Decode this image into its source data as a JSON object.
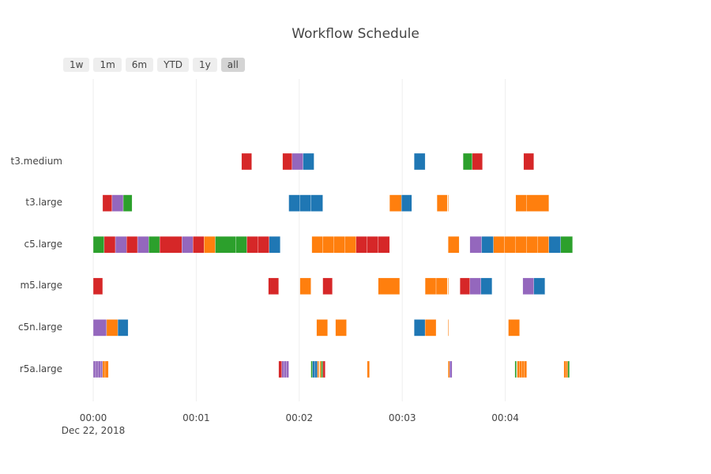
{
  "title": "Workflow Schedule",
  "range_selector": {
    "buttons": [
      "1w",
      "1m",
      "6m",
      "YTD",
      "1y",
      "all"
    ],
    "active": "all"
  },
  "colors": {
    "red": "#d62728",
    "purple": "#9467bd",
    "green": "#2ca02c",
    "blue": "#1f77b4",
    "orange": "#ff7f0e",
    "grid": "#eeeeee"
  },
  "chart_data": {
    "type": "gantt",
    "title": "Workflow Schedule",
    "x_unit": "seconds from 2018-12-22 00:00:00",
    "xlim": [
      0,
      280
    ],
    "x_ticks": [
      {
        "value": 0,
        "label": "00:00"
      },
      {
        "value": 60,
        "label": "00:01"
      },
      {
        "value": 120,
        "label": "00:02"
      },
      {
        "value": 180,
        "label": "00:03"
      },
      {
        "value": 240,
        "label": "00:04"
      }
    ],
    "x_date_label": "Dec 22, 2018",
    "categories": [
      "t3.medium",
      "t3.large",
      "c5.large",
      "m5.large",
      "c5n.large",
      "r5a.large"
    ],
    "grid": true,
    "tasks": [
      {
        "row": "t3.medium",
        "start": 86.4,
        "end": 92.3,
        "color": "red"
      },
      {
        "row": "t3.medium",
        "start": 110.3,
        "end": 115.8,
        "color": "red"
      },
      {
        "row": "t3.medium",
        "start": 115.8,
        "end": 122.2,
        "color": "purple"
      },
      {
        "row": "t3.medium",
        "start": 122.2,
        "end": 128.6,
        "color": "blue"
      },
      {
        "row": "t3.medium",
        "start": 186.9,
        "end": 193.3,
        "color": "blue"
      },
      {
        "row": "t3.medium",
        "start": 215.4,
        "end": 220.8,
        "color": "green"
      },
      {
        "row": "t3.medium",
        "start": 220.8,
        "end": 226.7,
        "color": "red"
      },
      {
        "row": "t3.medium",
        "start": 250.7,
        "end": 256.6,
        "color": "red"
      },
      {
        "row": "t3.large",
        "start": 5.5,
        "end": 11.0,
        "color": "red"
      },
      {
        "row": "t3.large",
        "start": 11.0,
        "end": 17.5,
        "color": "purple"
      },
      {
        "row": "t3.large",
        "start": 17.5,
        "end": 22.6,
        "color": "green"
      },
      {
        "row": "t3.large",
        "start": 113.9,
        "end": 120.4,
        "color": "blue"
      },
      {
        "row": "t3.large",
        "start": 120.4,
        "end": 126.8,
        "color": "blue"
      },
      {
        "row": "t3.large",
        "start": 126.8,
        "end": 133.7,
        "color": "blue"
      },
      {
        "row": "t3.large",
        "start": 172.6,
        "end": 179.5,
        "color": "orange"
      },
      {
        "row": "t3.large",
        "start": 179.5,
        "end": 185.5,
        "color": "blue"
      },
      {
        "row": "t3.large",
        "start": 200.2,
        "end": 206.2,
        "color": "orange"
      },
      {
        "row": "t3.large",
        "start": 206.7,
        "end": 207.1,
        "color": "orange"
      },
      {
        "row": "t3.large",
        "start": 246.1,
        "end": 252.5,
        "color": "orange"
      },
      {
        "row": "t3.large",
        "start": 252.5,
        "end": 265.4,
        "color": "orange"
      },
      {
        "row": "c5.large",
        "start": 0.0,
        "end": 6.4,
        "color": "green"
      },
      {
        "row": "c5.large",
        "start": 6.4,
        "end": 12.9,
        "color": "red"
      },
      {
        "row": "c5.large",
        "start": 12.9,
        "end": 19.4,
        "color": "purple"
      },
      {
        "row": "c5.large",
        "start": 19.4,
        "end": 25.8,
        "color": "red"
      },
      {
        "row": "c5.large",
        "start": 25.8,
        "end": 32.3,
        "color": "purple"
      },
      {
        "row": "c5.large",
        "start": 32.3,
        "end": 38.7,
        "color": "green"
      },
      {
        "row": "c5.large",
        "start": 38.7,
        "end": 51.7,
        "color": "red"
      },
      {
        "row": "c5.large",
        "start": 51.7,
        "end": 58.1,
        "color": "purple"
      },
      {
        "row": "c5.large",
        "start": 58.1,
        "end": 64.6,
        "color": "red"
      },
      {
        "row": "c5.large",
        "start": 64.6,
        "end": 71.1,
        "color": "orange"
      },
      {
        "row": "c5.large",
        "start": 71.1,
        "end": 83.1,
        "color": "green"
      },
      {
        "row": "c5.large",
        "start": 83.1,
        "end": 89.5,
        "color": "green"
      },
      {
        "row": "c5.large",
        "start": 89.5,
        "end": 96.0,
        "color": "red"
      },
      {
        "row": "c5.large",
        "start": 96.0,
        "end": 102.5,
        "color": "red"
      },
      {
        "row": "c5.large",
        "start": 102.5,
        "end": 108.9,
        "color": "blue"
      },
      {
        "row": "c5.large",
        "start": 127.3,
        "end": 133.7,
        "color": "orange"
      },
      {
        "row": "c5.large",
        "start": 133.7,
        "end": 140.2,
        "color": "orange"
      },
      {
        "row": "c5.large",
        "start": 140.2,
        "end": 146.6,
        "color": "orange"
      },
      {
        "row": "c5.large",
        "start": 146.6,
        "end": 153.1,
        "color": "orange"
      },
      {
        "row": "c5.large",
        "start": 153.1,
        "end": 159.6,
        "color": "red"
      },
      {
        "row": "c5.large",
        "start": 159.6,
        "end": 166.0,
        "color": "red"
      },
      {
        "row": "c5.large",
        "start": 166.0,
        "end": 172.6,
        "color": "red"
      },
      {
        "row": "c5.large",
        "start": 206.7,
        "end": 213.1,
        "color": "orange"
      },
      {
        "row": "c5.large",
        "start": 219.4,
        "end": 226.2,
        "color": "purple"
      },
      {
        "row": "c5.large",
        "start": 226.2,
        "end": 233.1,
        "color": "blue"
      },
      {
        "row": "c5.large",
        "start": 233.1,
        "end": 239.5,
        "color": "orange"
      },
      {
        "row": "c5.large",
        "start": 239.5,
        "end": 246.0,
        "color": "orange"
      },
      {
        "row": "c5.large",
        "start": 246.0,
        "end": 252.5,
        "color": "orange"
      },
      {
        "row": "c5.large",
        "start": 252.5,
        "end": 258.9,
        "color": "orange"
      },
      {
        "row": "c5.large",
        "start": 258.9,
        "end": 265.4,
        "color": "orange"
      },
      {
        "row": "c5.large",
        "start": 265.4,
        "end": 272.3,
        "color": "blue"
      },
      {
        "row": "c5.large",
        "start": 272.3,
        "end": 279.2,
        "color": "green"
      },
      {
        "row": "m5.large",
        "start": 0.0,
        "end": 5.5,
        "color": "red"
      },
      {
        "row": "m5.large",
        "start": 102.0,
        "end": 108.0,
        "color": "red"
      },
      {
        "row": "m5.large",
        "start": 120.4,
        "end": 126.8,
        "color": "orange"
      },
      {
        "row": "m5.large",
        "start": 133.7,
        "end": 139.3,
        "color": "red"
      },
      {
        "row": "m5.large",
        "start": 166.0,
        "end": 178.5,
        "color": "orange"
      },
      {
        "row": "m5.large",
        "start": 193.3,
        "end": 199.7,
        "color": "orange"
      },
      {
        "row": "m5.large",
        "start": 199.7,
        "end": 206.2,
        "color": "orange"
      },
      {
        "row": "m5.large",
        "start": 206.7,
        "end": 207.1,
        "color": "orange"
      },
      {
        "row": "m5.large",
        "start": 213.6,
        "end": 219.4,
        "color": "red"
      },
      {
        "row": "m5.large",
        "start": 219.4,
        "end": 225.8,
        "color": "purple"
      },
      {
        "row": "m5.large",
        "start": 225.8,
        "end": 232.3,
        "color": "blue"
      },
      {
        "row": "m5.large",
        "start": 250.2,
        "end": 256.6,
        "color": "purple"
      },
      {
        "row": "m5.large",
        "start": 256.6,
        "end": 263.1,
        "color": "blue"
      },
      {
        "row": "c5n.large",
        "start": 0.0,
        "end": 7.8,
        "color": "purple"
      },
      {
        "row": "c5n.large",
        "start": 7.8,
        "end": 14.3,
        "color": "orange"
      },
      {
        "row": "c5n.large",
        "start": 14.3,
        "end": 20.3,
        "color": "blue"
      },
      {
        "row": "c5n.large",
        "start": 130.1,
        "end": 136.5,
        "color": "orange"
      },
      {
        "row": "c5n.large",
        "start": 141.1,
        "end": 147.5,
        "color": "orange"
      },
      {
        "row": "c5n.large",
        "start": 186.9,
        "end": 193.3,
        "color": "blue"
      },
      {
        "row": "c5n.large",
        "start": 193.3,
        "end": 199.7,
        "color": "orange"
      },
      {
        "row": "c5n.large",
        "start": 206.7,
        "end": 207.1,
        "color": "orange"
      },
      {
        "row": "c5n.large",
        "start": 241.8,
        "end": 248.3,
        "color": "orange"
      },
      {
        "row": "r5a.large",
        "start": 0.0,
        "end": 1.4,
        "color": "purple"
      },
      {
        "row": "r5a.large",
        "start": 1.4,
        "end": 2.8,
        "color": "purple"
      },
      {
        "row": "r5a.large",
        "start": 2.8,
        "end": 4.2,
        "color": "purple"
      },
      {
        "row": "r5a.large",
        "start": 4.2,
        "end": 5.5,
        "color": "purple"
      },
      {
        "row": "r5a.large",
        "start": 5.5,
        "end": 6.9,
        "color": "orange"
      },
      {
        "row": "r5a.large",
        "start": 6.9,
        "end": 8.8,
        "color": "orange"
      },
      {
        "row": "r5a.large",
        "start": 108.0,
        "end": 109.8,
        "color": "red"
      },
      {
        "row": "r5a.large",
        "start": 109.8,
        "end": 111.2,
        "color": "purple"
      },
      {
        "row": "r5a.large",
        "start": 111.2,
        "end": 112.6,
        "color": "purple"
      },
      {
        "row": "r5a.large",
        "start": 112.6,
        "end": 113.9,
        "color": "purple"
      },
      {
        "row": "r5a.large",
        "start": 126.8,
        "end": 127.7,
        "color": "green"
      },
      {
        "row": "r5a.large",
        "start": 127.7,
        "end": 129.1,
        "color": "blue"
      },
      {
        "row": "r5a.large",
        "start": 129.1,
        "end": 130.5,
        "color": "blue"
      },
      {
        "row": "r5a.large",
        "start": 130.5,
        "end": 131.4,
        "color": "orange"
      },
      {
        "row": "r5a.large",
        "start": 131.9,
        "end": 132.8,
        "color": "orange"
      },
      {
        "row": "r5a.large",
        "start": 132.8,
        "end": 133.7,
        "color": "green"
      },
      {
        "row": "r5a.large",
        "start": 133.7,
        "end": 135.1,
        "color": "red"
      },
      {
        "row": "r5a.large",
        "start": 159.6,
        "end": 160.9,
        "color": "orange"
      },
      {
        "row": "r5a.large",
        "start": 206.7,
        "end": 207.6,
        "color": "orange"
      },
      {
        "row": "r5a.large",
        "start": 207.6,
        "end": 209.0,
        "color": "purple"
      },
      {
        "row": "r5a.large",
        "start": 245.6,
        "end": 246.5,
        "color": "green"
      },
      {
        "row": "r5a.large",
        "start": 246.9,
        "end": 248.3,
        "color": "orange"
      },
      {
        "row": "r5a.large",
        "start": 248.3,
        "end": 249.7,
        "color": "orange"
      },
      {
        "row": "r5a.large",
        "start": 249.7,
        "end": 251.1,
        "color": "orange"
      },
      {
        "row": "r5a.large",
        "start": 251.1,
        "end": 252.5,
        "color": "orange"
      },
      {
        "row": "r5a.large",
        "start": 274.1,
        "end": 275.5,
        "color": "orange"
      },
      {
        "row": "r5a.large",
        "start": 275.5,
        "end": 276.4,
        "color": "orange"
      },
      {
        "row": "r5a.large",
        "start": 276.4,
        "end": 277.4,
        "color": "green"
      }
    ]
  }
}
